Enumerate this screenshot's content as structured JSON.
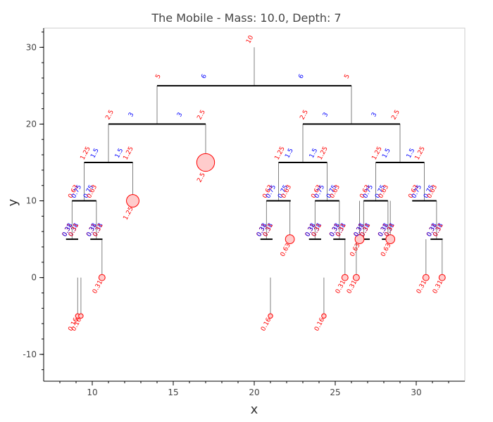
{
  "chart_data": {
    "type": "scatter",
    "title": "The Mobile  -  Mass: 10.0, Depth: 7",
    "xlabel": "x",
    "ylabel": "y",
    "xlim": [
      7.0,
      33.0
    ],
    "ylim": [
      -13.5,
      32.5
    ],
    "x_ticks": [
      10,
      15,
      20,
      25,
      30
    ],
    "y_ticks": [
      -10,
      0,
      10,
      20,
      30
    ],
    "total_mass": 10.0,
    "depth": 7,
    "root": {
      "x": 20.0,
      "y": 30.0
    },
    "colors": {
      "rod": "#000000",
      "string": "#808080",
      "arm_label": "#0000ff",
      "mass_label": "#ff0000",
      "weight_fill": "#ffcccc",
      "weight_edge": "#ff0000"
    },
    "weights": [
      {
        "x": 17.0,
        "y": 15.0,
        "mass": 2.5
      },
      {
        "x": 12.5,
        "y": 10.0,
        "mass": 1.25
      },
      {
        "x": 22.2,
        "y": 5.0,
        "mass": 0.63
      },
      {
        "x": 26.5,
        "y": 5.0,
        "mass": 0.63
      },
      {
        "x": 28.4,
        "y": 5.0,
        "mass": 0.63
      },
      {
        "x": 10.6,
        "y": 0.0,
        "mass": 0.31
      },
      {
        "x": 25.6,
        "y": 0.0,
        "mass": 0.31
      },
      {
        "x": 26.3,
        "y": 0.0,
        "mass": 0.31
      },
      {
        "x": 30.6,
        "y": 0.0,
        "mass": 0.31
      },
      {
        "x": 31.6,
        "y": 0.0,
        "mass": 0.31
      },
      {
        "x": 9.1,
        "y": -5.0,
        "mass": 0.16
      },
      {
        "x": 9.3,
        "y": -5.0,
        "mass": 0.16
      },
      {
        "x": 24.3,
        "y": -5.0,
        "mass": 0.16
      },
      {
        "x": 21.0,
        "y": -5.0,
        "mass": 0.16
      }
    ],
    "rods": [
      {
        "y": 25,
        "x1": 14,
        "x2": 26,
        "left_arm": 6.0,
        "right_arm": 6.0,
        "left_mass": 5.0,
        "right_mass": 5.0
      },
      {
        "y": 20,
        "x1": 11,
        "x2": 17,
        "left_arm": 3.0,
        "right_arm": 3.0,
        "left_mass": 2.5,
        "right_mass": 2.5
      },
      {
        "y": 20,
        "x1": 23,
        "x2": 29,
        "left_arm": 3.0,
        "right_arm": 3.0,
        "left_mass": 2.5,
        "right_mass": 2.5
      },
      {
        "y": 15,
        "x1": 9.5,
        "x2": 12.5,
        "left_arm": 1.5,
        "right_arm": 1.5,
        "left_mass": 1.25,
        "right_mass": 1.25
      },
      {
        "y": 15,
        "x1": 21.5,
        "x2": 24.5,
        "left_arm": 1.5,
        "right_arm": 1.5,
        "left_mass": 1.25,
        "right_mass": 1.25
      },
      {
        "y": 15,
        "x1": 27.5,
        "x2": 30.5,
        "left_arm": 1.5,
        "right_arm": 1.5,
        "left_mass": 1.25,
        "right_mass": 1.25
      },
      {
        "y": 10,
        "x1": 8.75,
        "x2": 10.25,
        "left_arm": 0.75,
        "right_arm": 0.75,
        "left_mass": 0.63,
        "right_mass": 0.63
      },
      {
        "y": 10,
        "x1": 20.75,
        "x2": 22.25,
        "left_arm": 0.75,
        "right_arm": 0.75,
        "left_mass": 0.63,
        "right_mass": 0.63
      },
      {
        "y": 10,
        "x1": 23.75,
        "x2": 25.25,
        "left_arm": 0.75,
        "right_arm": 0.75,
        "left_mass": 0.63,
        "right_mass": 0.63
      },
      {
        "y": 10,
        "x1": 26.75,
        "x2": 28.25,
        "left_arm": 0.75,
        "right_arm": 0.75,
        "left_mass": 0.63,
        "right_mass": 0.63
      },
      {
        "y": 10,
        "x1": 29.75,
        "x2": 31.25,
        "left_arm": 0.75,
        "right_arm": 0.75,
        "left_mass": 0.63,
        "right_mass": 0.63
      },
      {
        "y": 5,
        "x1": 8.38,
        "x2": 9.13,
        "left_arm": 0.38,
        "right_arm": 0.38,
        "left_mass": 0.31,
        "right_mass": 0.31
      },
      {
        "y": 5,
        "x1": 9.88,
        "x2": 10.63,
        "left_arm": 0.38,
        "right_arm": 0.38,
        "left_mass": 0.31,
        "right_mass": 0.31
      },
      {
        "y": 5,
        "x1": 20.38,
        "x2": 21.13,
        "left_arm": 0.38,
        "right_arm": 0.38,
        "left_mass": 0.31,
        "right_mass": 0.31
      },
      {
        "y": 5,
        "x1": 23.38,
        "x2": 24.13,
        "left_arm": 0.38,
        "right_arm": 0.38,
        "left_mass": 0.31,
        "right_mass": 0.31
      },
      {
        "y": 5,
        "x1": 24.88,
        "x2": 25.63,
        "left_arm": 0.38,
        "right_arm": 0.38,
        "left_mass": 0.31,
        "right_mass": 0.31
      },
      {
        "y": 5,
        "x1": 26.38,
        "x2": 27.13,
        "left_arm": 0.38,
        "right_arm": 0.38,
        "left_mass": 0.31,
        "right_mass": 0.31
      },
      {
        "y": 5,
        "x1": 27.88,
        "x2": 28.63,
        "left_arm": 0.38,
        "right_arm": 0.38,
        "left_mass": 0.31,
        "right_mass": 0.31
      },
      {
        "y": 5,
        "x1": 30.88,
        "x2": 31.63,
        "left_arm": 0.38,
        "right_arm": 0.38,
        "left_mass": 0.31,
        "right_mass": 0.31
      }
    ]
  }
}
